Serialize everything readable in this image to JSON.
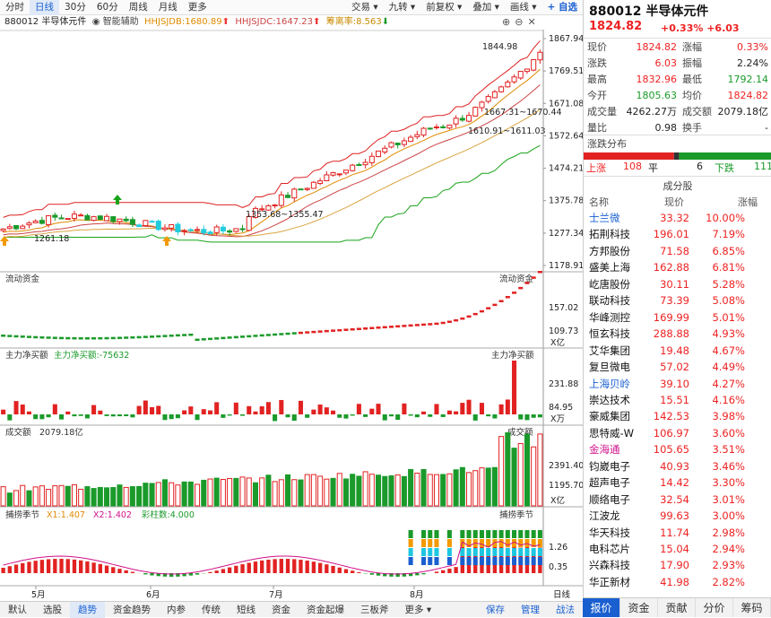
{
  "toolbar": {
    "left": [
      "分时",
      "日线",
      "30分",
      "60分",
      "周线",
      "月线",
      "更多"
    ],
    "active": "日线",
    "right": [
      "交易",
      "九转",
      "前复权",
      "叠加",
      "画线"
    ],
    "add_watch": "+ 自选"
  },
  "legend": {
    "code_name": "880012 半导体元件",
    "assist": "智能辅助",
    "hhjsjdb": "HHJSJDB:1680.89",
    "hhjsjdc": "HHJSJDC:1647.23",
    "fqrate": "筹离率:8.563"
  },
  "chart_labels": {
    "price_high_mark": "1844.98",
    "ma_mark1": "1667.31~1670.44",
    "ma_mark2": "1610.91~1611.03",
    "ma_mark3": "1353.68~1355.47",
    "low_mark": "1261.18",
    "price_ticks": [
      "1867.94",
      "1769.51",
      "1671.08",
      "1572.64",
      "1474.21",
      "1375.78",
      "1277.34",
      "1178.91"
    ],
    "flow_title": "流动资金",
    "flow_title_right": "流动资金",
    "flow_ticks": [
      "157.02",
      "109.73"
    ],
    "flow_unit": "X亿",
    "main_title": "主力净买额",
    "main_value": "主力净买额:-75632",
    "main_title_right": "主力净买额",
    "main_ticks": [
      "231.88",
      "84.95"
    ],
    "main_unit": "X万",
    "vol_title": "成交额",
    "vol_value": "2079.18亿",
    "vol_title_right": "成交额",
    "vol_ticks": [
      "2391.40",
      "1195.70"
    ],
    "vol_unit": "X亿",
    "cap_title": "捕捞季节",
    "cap_x1": "X1:1.407",
    "cap_x2": "X2:1.402",
    "cap_bars": "彩柱数:4.000",
    "cap_title_right": "捕捞季节",
    "cap_ticks": [
      "1.26",
      "0.35"
    ],
    "months": [
      "5月",
      "6月",
      "7月",
      "8月"
    ],
    "period": "日线"
  },
  "colors": {
    "up": "#e22222",
    "down": "#1a9a2a",
    "accent": "#1a5fd0"
  },
  "panel": {
    "name": "880012 半导体元件",
    "price": "1824.82",
    "change": "+0.33% +6.03",
    "quote": [
      {
        "k1": "现价",
        "v1": "1824.82",
        "c1": "red",
        "k2": "涨幅",
        "v2": "0.33%",
        "c2": "red"
      },
      {
        "k1": "涨跌",
        "v1": "6.03",
        "c1": "red",
        "k2": "振幅",
        "v2": "2.24%",
        "c2": "dark"
      },
      {
        "k1": "最高",
        "v1": "1832.96",
        "c1": "red",
        "k2": "最低",
        "v2": "1792.14",
        "c2": "green"
      },
      {
        "k1": "今开",
        "v1": "1805.63",
        "c1": "green",
        "k2": "均价",
        "v2": "1824.82",
        "c2": "red"
      },
      {
        "k1": "成交量",
        "v1": "4262.27万",
        "c1": "dark",
        "k2": "成交额",
        "v2": "2079.18亿",
        "c2": "dark"
      },
      {
        "k1": "量比",
        "v1": "0.98",
        "c1": "dark",
        "k2": "换手",
        "v2": "-",
        "c2": "dark"
      }
    ],
    "dist_title": "涨跌分布",
    "up_label": "上涨",
    "up_count": "108",
    "flat_label": "平",
    "flat_count": "6",
    "down_label": "下跌",
    "down_count": "111",
    "comp_title": "成分股",
    "comp_headers": [
      "名称",
      "现价",
      "涨幅"
    ],
    "stocks": [
      {
        "name": "士兰微",
        "price": "33.32",
        "chg": "10.00%",
        "nc": "#1a5fd0"
      },
      {
        "name": "拓荆科技",
        "price": "196.01",
        "chg": "7.19%",
        "nc": "#111"
      },
      {
        "name": "方邦股份",
        "price": "71.58",
        "chg": "6.85%",
        "nc": "#111"
      },
      {
        "name": "盛美上海",
        "price": "162.88",
        "chg": "6.81%",
        "nc": "#111"
      },
      {
        "name": "屹唐股份",
        "price": "30.11",
        "chg": "5.28%",
        "nc": "#111"
      },
      {
        "name": "联动科技",
        "price": "73.39",
        "chg": "5.08%",
        "nc": "#111"
      },
      {
        "name": "华峰测控",
        "price": "169.99",
        "chg": "5.01%",
        "nc": "#111"
      },
      {
        "name": "恒玄科技",
        "price": "288.88",
        "chg": "4.93%",
        "nc": "#111"
      },
      {
        "name": "艾华集团",
        "price": "19.48",
        "chg": "4.67%",
        "nc": "#111"
      },
      {
        "name": "复旦微电",
        "price": "57.02",
        "chg": "4.49%",
        "nc": "#111"
      },
      {
        "name": "上海贝岭",
        "price": "39.10",
        "chg": "4.27%",
        "nc": "#1a5fd0"
      },
      {
        "name": "崇达技术",
        "price": "15.51",
        "chg": "4.16%",
        "nc": "#111"
      },
      {
        "name": "豪威集团",
        "price": "142.53",
        "chg": "3.98%",
        "nc": "#111"
      },
      {
        "name": "思特威-W",
        "price": "106.97",
        "chg": "3.60%",
        "nc": "#111"
      },
      {
        "name": "金海通",
        "price": "105.65",
        "chg": "3.51%",
        "nc": "#d0108a"
      },
      {
        "name": "钧崴电子",
        "price": "40.93",
        "chg": "3.46%",
        "nc": "#111"
      },
      {
        "name": "超声电子",
        "price": "14.42",
        "chg": "3.30%",
        "nc": "#111"
      },
      {
        "name": "顺络电子",
        "price": "32.54",
        "chg": "3.01%",
        "nc": "#111"
      },
      {
        "name": "江波龙",
        "price": "99.63",
        "chg": "3.00%",
        "nc": "#111"
      },
      {
        "name": "华天科技",
        "price": "11.74",
        "chg": "2.98%",
        "nc": "#111"
      },
      {
        "name": "电科芯片",
        "price": "15.04",
        "chg": "2.94%",
        "nc": "#111"
      },
      {
        "name": "兴森科技",
        "price": "17.90",
        "chg": "2.93%",
        "nc": "#111"
      },
      {
        "name": "华正新材",
        "price": "41.98",
        "chg": "2.82%",
        "nc": "#111"
      }
    ]
  },
  "bottom_tabs": [
    "默认",
    "选股",
    "趋势",
    "资金趋势",
    "内参",
    "传统",
    "短线",
    "资金",
    "资金起爆",
    "三板斧",
    "更多"
  ],
  "bottom_active": "趋势",
  "bottom_right": [
    "保存",
    "管理",
    "战法"
  ],
  "panel_tabs": [
    "报价",
    "资金",
    "贡献",
    "分价",
    "筹码"
  ],
  "panel_active": "报价"
}
